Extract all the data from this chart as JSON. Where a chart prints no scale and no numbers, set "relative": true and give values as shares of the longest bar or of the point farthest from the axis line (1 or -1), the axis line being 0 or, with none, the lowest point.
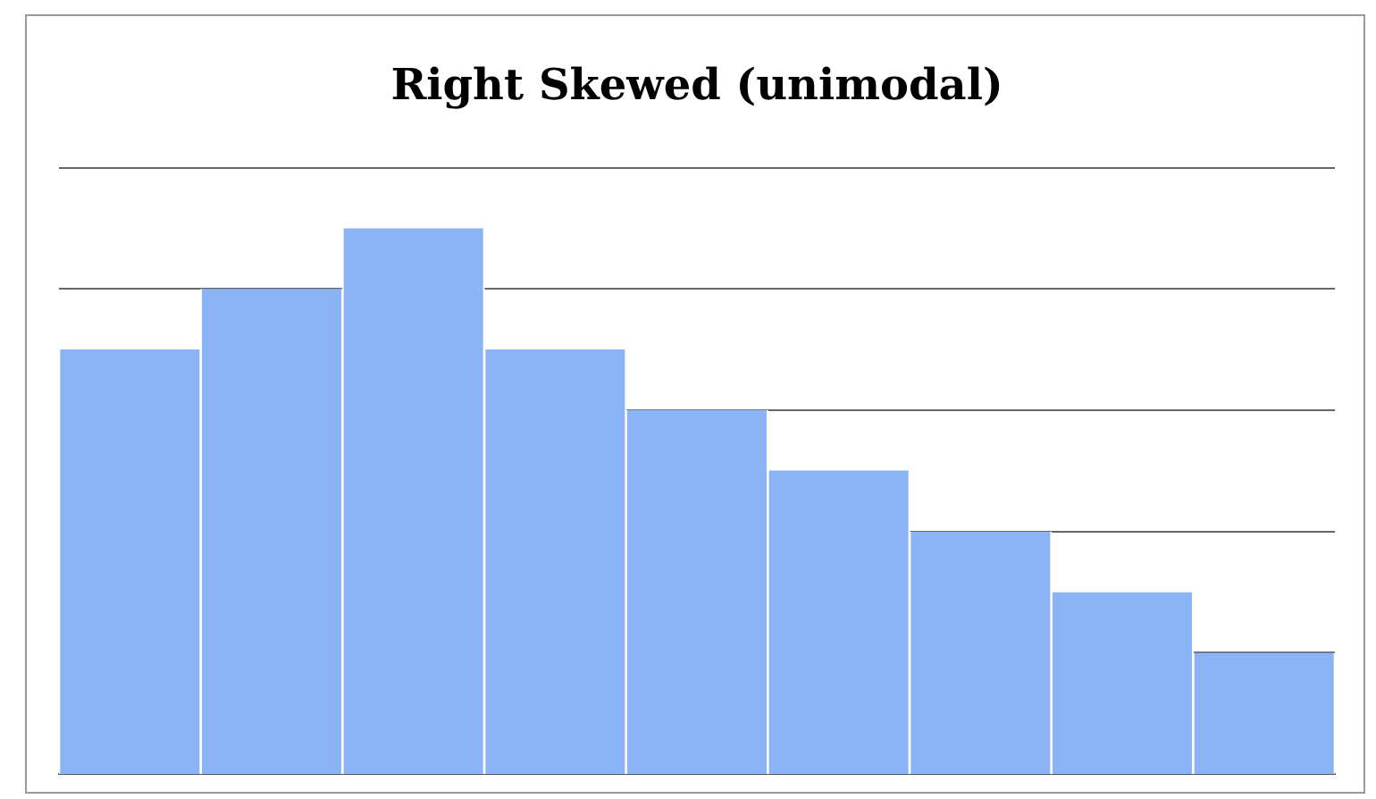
{
  "chart_data": {
    "type": "bar",
    "title": "Right Skewed (unimodal)",
    "relative": true,
    "grid": "y",
    "color": "#8ab4f5",
    "categories": [
      null,
      null,
      null,
      null,
      null,
      null,
      null,
      null,
      null
    ],
    "values": [
      0.778,
      0.889,
      1,
      0.778,
      0.667,
      0.556,
      0.444,
      0.333,
      0.222
    ]
  }
}
